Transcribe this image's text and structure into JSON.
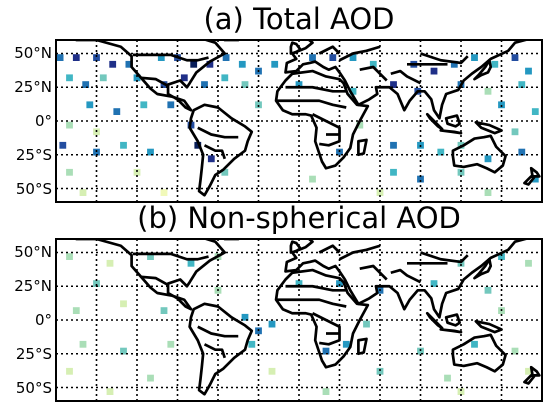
{
  "panels": [
    {
      "title": "(a) Total AOD",
      "lat_labels": [
        "50°N",
        "25°N",
        "0°",
        "25°S",
        "50°S"
      ],
      "colormap": "YlGnBu",
      "cells": [
        {
          "lon": -177,
          "lat": 47,
          "v": 0.7
        },
        {
          "lon": -165,
          "lat": 47,
          "v": 0.9
        },
        {
          "lon": -150,
          "lat": 47,
          "v": 0.8
        },
        {
          "lon": -138,
          "lat": 42,
          "v": 0.9
        },
        {
          "lon": -126,
          "lat": 42,
          "v": 0.7
        },
        {
          "lon": -102,
          "lat": 47,
          "v": 0.6
        },
        {
          "lon": -90,
          "lat": 47,
          "v": 0.8
        },
        {
          "lon": -78,
          "lat": 42,
          "v": 1.0
        },
        {
          "lon": -66,
          "lat": 42,
          "v": 0.9
        },
        {
          "lon": -54,
          "lat": 47,
          "v": 0.7
        },
        {
          "lon": -42,
          "lat": 42,
          "v": 0.6
        },
        {
          "lon": -30,
          "lat": 37,
          "v": 0.7
        },
        {
          "lon": -18,
          "lat": 42,
          "v": 0.6
        },
        {
          "lon": 10,
          "lat": 47,
          "v": 0.7
        },
        {
          "lon": 25,
          "lat": 47,
          "v": 0.8
        },
        {
          "lon": 40,
          "lat": 47,
          "v": 0.6
        },
        {
          "lon": 55,
          "lat": 42,
          "v": 0.5
        },
        {
          "lon": 85,
          "lat": 42,
          "v": 0.8
        },
        {
          "lon": 100,
          "lat": 37,
          "v": 0.9
        },
        {
          "lon": 115,
          "lat": 42,
          "v": 0.7
        },
        {
          "lon": 130,
          "lat": 47,
          "v": 0.6
        },
        {
          "lon": 145,
          "lat": 42,
          "v": 0.5
        },
        {
          "lon": 160,
          "lat": 47,
          "v": 0.8
        },
        {
          "lon": 170,
          "lat": 37,
          "v": 0.6
        },
        {
          "lon": -170,
          "lat": 32,
          "v": 0.5
        },
        {
          "lon": -158,
          "lat": 27,
          "v": 0.7
        },
        {
          "lon": -145,
          "lat": 32,
          "v": 0.4
        },
        {
          "lon": -120,
          "lat": 32,
          "v": 0.6
        },
        {
          "lon": -100,
          "lat": 27,
          "v": 0.8
        },
        {
          "lon": -85,
          "lat": 32,
          "v": 0.9
        },
        {
          "lon": -70,
          "lat": 27,
          "v": 0.7
        },
        {
          "lon": -55,
          "lat": 32,
          "v": 0.5
        },
        {
          "lon": -40,
          "lat": 27,
          "v": 0.4
        },
        {
          "lon": 0,
          "lat": 27,
          "v": 0.6
        },
        {
          "lon": 40,
          "lat": 22,
          "v": 0.5
        },
        {
          "lon": 70,
          "lat": 27,
          "v": 0.9
        },
        {
          "lon": 88,
          "lat": 22,
          "v": 0.8
        },
        {
          "lon": 120,
          "lat": 27,
          "v": 0.7
        },
        {
          "lon": 140,
          "lat": 22,
          "v": 0.3
        },
        {
          "lon": 165,
          "lat": 27,
          "v": 0.5
        },
        {
          "lon": -155,
          "lat": 12,
          "v": 0.6
        },
        {
          "lon": -135,
          "lat": 7,
          "v": 0.7
        },
        {
          "lon": -115,
          "lat": 12,
          "v": 0.5
        },
        {
          "lon": -95,
          "lat": 12,
          "v": 0.7
        },
        {
          "lon": -30,
          "lat": 12,
          "v": 0.4
        },
        {
          "lon": 150,
          "lat": 12,
          "v": 0.6
        },
        {
          "lon": 175,
          "lat": 7,
          "v": 0.5
        },
        {
          "lon": -170,
          "lat": -3,
          "v": 0.3
        },
        {
          "lon": -150,
          "lat": -8,
          "v": 0.2
        },
        {
          "lon": -80,
          "lat": -3,
          "v": 0.8
        },
        {
          "lon": 45,
          "lat": -3,
          "v": 0.3
        },
        {
          "lon": 160,
          "lat": -8,
          "v": 0.4
        },
        {
          "lon": -175,
          "lat": -18,
          "v": 0.8
        },
        {
          "lon": -150,
          "lat": -23,
          "v": 0.7
        },
        {
          "lon": -130,
          "lat": -18,
          "v": 0.5
        },
        {
          "lon": -110,
          "lat": -23,
          "v": 0.6
        },
        {
          "lon": -75,
          "lat": -18,
          "v": 1.0
        },
        {
          "lon": -65,
          "lat": -28,
          "v": 0.9
        },
        {
          "lon": 30,
          "lat": -23,
          "v": 0.7
        },
        {
          "lon": 70,
          "lat": -18,
          "v": 0.7
        },
        {
          "lon": 90,
          "lat": -18,
          "v": 0.6
        },
        {
          "lon": 105,
          "lat": -23,
          "v": 0.5
        },
        {
          "lon": 120,
          "lat": -18,
          "v": 0.4
        },
        {
          "lon": 140,
          "lat": -28,
          "v": 0.6
        },
        {
          "lon": 165,
          "lat": -23,
          "v": 0.7
        },
        {
          "lon": -170,
          "lat": -38,
          "v": 0.3
        },
        {
          "lon": -120,
          "lat": -38,
          "v": 0.2
        },
        {
          "lon": -55,
          "lat": -38,
          "v": 0.4
        },
        {
          "lon": 10,
          "lat": -43,
          "v": 0.3
        },
        {
          "lon": 70,
          "lat": -38,
          "v": 0.5
        },
        {
          "lon": 90,
          "lat": -43,
          "v": 0.7
        },
        {
          "lon": 120,
          "lat": -38,
          "v": 0.4
        },
        {
          "lon": 175,
          "lat": -43,
          "v": 0.6
        },
        {
          "lon": -160,
          "lat": -53,
          "v": 0.2
        },
        {
          "lon": -100,
          "lat": -53,
          "v": 0.1
        },
        {
          "lon": 60,
          "lat": -53,
          "v": 0.2
        },
        {
          "lon": 140,
          "lat": -53,
          "v": 0.3
        }
      ]
    },
    {
      "title": "(b) Non-spherical AOD",
      "lat_labels": [
        "50°N",
        "25°N",
        "0°",
        "25°S",
        "50°S"
      ],
      "colormap": "YlGnBu",
      "cells": [
        {
          "lon": -170,
          "lat": 47,
          "v": 0.3
        },
        {
          "lon": -140,
          "lat": 42,
          "v": 0.2
        },
        {
          "lon": -110,
          "lat": 47,
          "v": 0.4
        },
        {
          "lon": -80,
          "lat": 42,
          "v": 0.5
        },
        {
          "lon": -60,
          "lat": 47,
          "v": 0.3
        },
        {
          "lon": 120,
          "lat": 42,
          "v": 0.4
        },
        {
          "lon": 150,
          "lat": 47,
          "v": 0.5
        },
        {
          "lon": 170,
          "lat": 42,
          "v": 0.3
        },
        {
          "lon": -150,
          "lat": 27,
          "v": 0.4
        },
        {
          "lon": -60,
          "lat": 22,
          "v": 0.3
        },
        {
          "lon": 0,
          "lat": 27,
          "v": 0.5
        },
        {
          "lon": 30,
          "lat": 27,
          "v": 0.6
        },
        {
          "lon": 60,
          "lat": 22,
          "v": 0.7
        },
        {
          "lon": 100,
          "lat": 27,
          "v": 0.5
        },
        {
          "lon": 140,
          "lat": 22,
          "v": 0.4
        },
        {
          "lon": -165,
          "lat": 7,
          "v": 0.3
        },
        {
          "lon": -130,
          "lat": 12,
          "v": 0.2
        },
        {
          "lon": -100,
          "lat": 7,
          "v": 0.4
        },
        {
          "lon": -40,
          "lat": 2,
          "v": 0.6
        },
        {
          "lon": -30,
          "lat": -8,
          "v": 0.7
        },
        {
          "lon": -20,
          "lat": -3,
          "v": 0.6
        },
        {
          "lon": 50,
          "lat": -3,
          "v": 0.4
        },
        {
          "lon": 150,
          "lat": 7,
          "v": 0.3
        },
        {
          "lon": -160,
          "lat": -18,
          "v": 0.3
        },
        {
          "lon": -130,
          "lat": -23,
          "v": 0.4
        },
        {
          "lon": -95,
          "lat": -18,
          "v": 0.3
        },
        {
          "lon": -35,
          "lat": -18,
          "v": 0.5
        },
        {
          "lon": 20,
          "lat": -23,
          "v": 0.7
        },
        {
          "lon": 35,
          "lat": -18,
          "v": 0.6
        },
        {
          "lon": 90,
          "lat": -23,
          "v": 0.4
        },
        {
          "lon": 130,
          "lat": -18,
          "v": 0.5
        },
        {
          "lon": 160,
          "lat": -23,
          "v": 0.3
        },
        {
          "lon": -170,
          "lat": -38,
          "v": 0.2
        },
        {
          "lon": -110,
          "lat": -43,
          "v": 0.3
        },
        {
          "lon": -20,
          "lat": -38,
          "v": 0.2
        },
        {
          "lon": 60,
          "lat": -38,
          "v": 0.4
        },
        {
          "lon": 110,
          "lat": -43,
          "v": 0.3
        },
        {
          "lon": 170,
          "lat": -38,
          "v": 0.2
        },
        {
          "lon": -140,
          "lat": -53,
          "v": 0.2
        },
        {
          "lon": 20,
          "lat": -53,
          "v": 0.3
        },
        {
          "lon": 120,
          "lat": -53,
          "v": 0.2
        }
      ]
    }
  ]
}
